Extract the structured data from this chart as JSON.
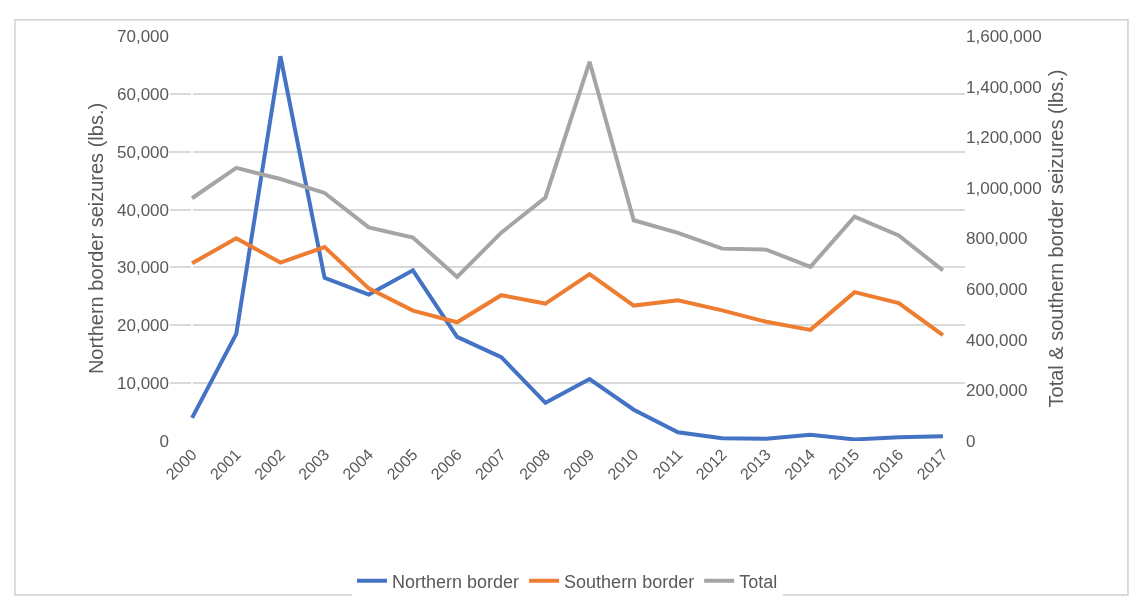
{
  "chart_data": {
    "type": "line",
    "categories": [
      "2000",
      "2001",
      "2002",
      "2003",
      "2004",
      "2005",
      "2006",
      "2007",
      "2008",
      "2009",
      "2010",
      "2011",
      "2012",
      "2013",
      "2014",
      "2015",
      "2016",
      "2017"
    ],
    "ylabel": "Northern border seizures (lbs.)",
    "y2label": "Total & southern border seizures (lbs.)",
    "ylim": [
      0,
      70000
    ],
    "yticks": [
      {
        "value": 0,
        "label": "0"
      },
      {
        "value": 10000,
        "label": "10,000"
      },
      {
        "value": 20000,
        "label": "20,000"
      },
      {
        "value": 30000,
        "label": "30,000"
      },
      {
        "value": 40000,
        "label": "40,000"
      },
      {
        "value": 50000,
        "label": "50,000"
      },
      {
        "value": 60000,
        "label": "60,000"
      },
      {
        "value": 70000,
        "label": "70,000"
      }
    ],
    "y2lim": [
      0,
      1600000
    ],
    "y2ticks": [
      {
        "value": 0,
        "label": "0"
      },
      {
        "value": 200000,
        "label": "200,000"
      },
      {
        "value": 400000,
        "label": "400,000"
      },
      {
        "value": 600000,
        "label": "600,000"
      },
      {
        "value": 800000,
        "label": "800,000"
      },
      {
        "value": 1000000,
        "label": "1,000,000"
      },
      {
        "value": 1200000,
        "label": "1,200,000"
      },
      {
        "value": 1400000,
        "label": "1,400,000"
      },
      {
        "value": 1600000,
        "label": "1,600,000"
      }
    ],
    "grid": "y",
    "legend": "bottom",
    "marker": "none",
    "line_style": "solid",
    "series": [
      {
        "name": "Northern border",
        "color": "#4472c4",
        "values": [
          4000,
          18500,
          66500,
          28200,
          25300,
          29500,
          18000,
          14500,
          6600,
          10700,
          5400,
          1500,
          480,
          400,
          1100,
          270,
          650,
          800
        ]
      },
      {
        "name": "Southern border",
        "color": "#ed7d31",
        "axis": "y2",
        "values": [
          702000,
          801000,
          705000,
          766000,
          603000,
          515000,
          469000,
          576000,
          543000,
          659000,
          535000,
          556000,
          516000,
          471000,
          439000,
          588000,
          545000,
          418000
        ]
      },
      {
        "name": "Total",
        "color": "#a5a5a5",
        "axis": "y2",
        "values": [
          959000,
          1079000,
          1035000,
          980000,
          844000,
          804000,
          648000,
          823000,
          962000,
          1498000,
          872000,
          822000,
          760000,
          756000,
          688000,
          886000,
          812000,
          674000
        ]
      }
    ]
  }
}
